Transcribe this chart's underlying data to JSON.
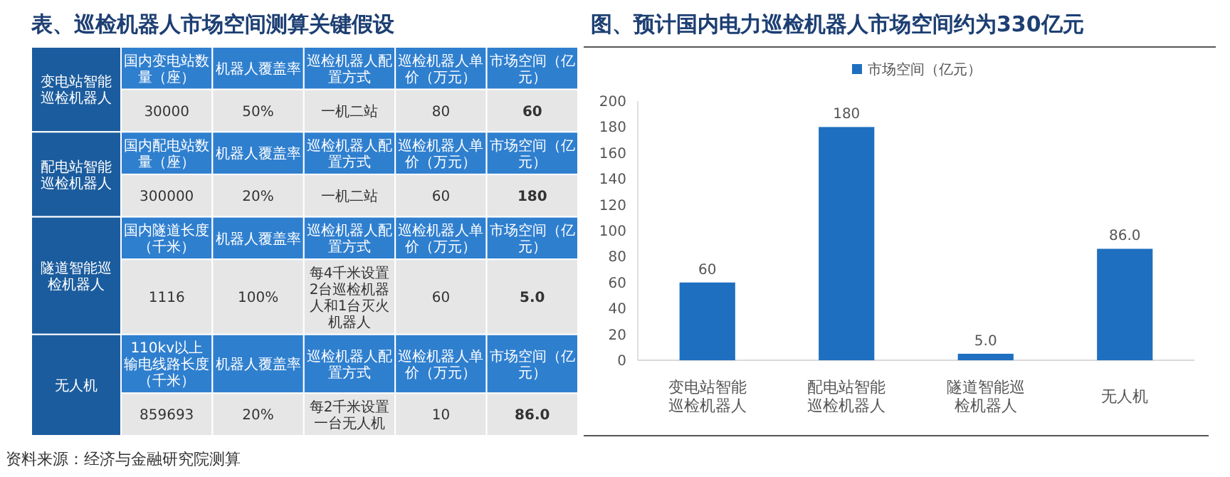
{
  "chart_data": [
    {
      "type": "other",
      "title": "表、巡检机器人市场空间测算关键假设",
      "y_categories": [
        "变电站智能巡检机器人",
        "配电站智能巡检机器人",
        "隧道智能巡检机器人",
        "无人机"
      ],
      "cell_labels": [
        [
          "国内变电站数量（座）",
          "机器人覆盖率",
          "巡检机器人配置方式",
          "巡检机器人单价（万元）",
          "市场空间（亿元）"
        ],
        [
          "30000",
          "50%",
          "一机二站",
          "80",
          "60"
        ],
        [
          "国内配电站数量（座）",
          "机器人覆盖率",
          "巡检机器人配置方式",
          "巡检机器人单价（万元）",
          "市场空间（亿元）"
        ],
        [
          "300000",
          "20%",
          "一机二站",
          "60",
          "180"
        ],
        [
          "国内隧道长度（千米）",
          "机器人覆盖率",
          "巡检机器人配置方式",
          "巡检机器人单价（万元）",
          "市场空间（亿元）"
        ],
        [
          "1116",
          "100%",
          "每4千米设置2台巡检机器人和1台灭火机器人",
          "60",
          "5.0"
        ],
        [
          "110kv以上输电线路长度（千米）",
          "机器人覆盖率",
          "巡检机器人配置方式",
          "巡检机器人单价（万元）",
          "市场空间（亿元）"
        ],
        [
          "859693",
          "20%",
          "每2千米设置一台无人机",
          "10",
          "86.0"
        ]
      ],
      "annotations": [
        "资料来源：经济与金融研究院测算"
      ]
    },
    {
      "type": "bar",
      "title": "图、预计国内电力巡检机器人市场空间约为330亿元",
      "categories": [
        "变电站智能巡检机器人",
        "配电站智能巡检机器人",
        "隧道智能巡检机器人",
        "无人机"
      ],
      "series": [
        {
          "name": "市场空间（亿元）",
          "color": "#1f6fc0",
          "values": [
            60,
            180,
            5.0,
            86.0
          ],
          "value_labels": [
            "60",
            "180",
            "5.0",
            "86.0"
          ]
        }
      ],
      "ylim": [
        0,
        200
      ],
      "yticks": [
        0,
        20,
        40,
        60,
        80,
        100,
        120,
        140,
        160,
        180,
        200
      ],
      "legend": "top"
    }
  ]
}
